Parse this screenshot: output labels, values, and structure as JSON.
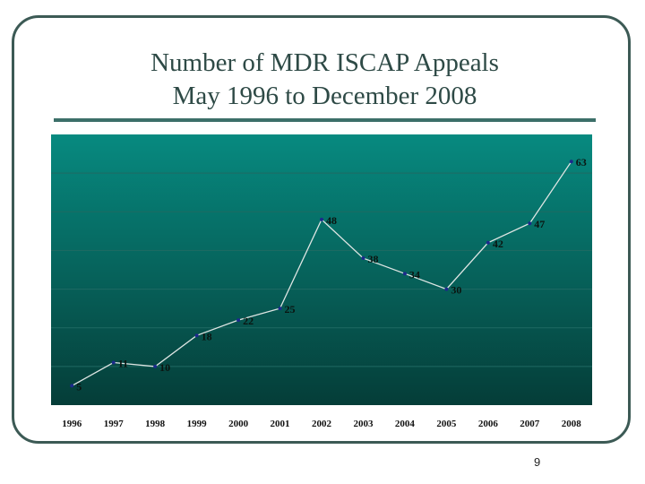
{
  "slide": {
    "title_line1": "Number of MDR ISCAP Appeals",
    "title_line2": "May 1996 to December 2008",
    "page_number": "9"
  },
  "colors": {
    "frame": "#3c5a55",
    "title_rule": "#3c6f69",
    "plot_top": "#078a80",
    "plot_bottom": "#053d38",
    "line": "#dfe6e4",
    "marker": "#1c2a8c",
    "label_text": "#0b1410"
  },
  "chart_data": {
    "type": "line",
    "title": "",
    "xlabel": "",
    "ylabel": "",
    "categories": [
      "1996",
      "1997",
      "1998",
      "1999",
      "2000",
      "2001",
      "2002",
      "2003",
      "2004",
      "2005",
      "2006",
      "2007",
      "2008"
    ],
    "values": [
      5,
      11,
      10,
      18,
      22,
      25,
      48,
      38,
      34,
      30,
      42,
      47,
      63
    ],
    "data_labels": [
      "5",
      "11",
      "10",
      "18",
      "22",
      "25",
      "48",
      "38",
      "34",
      "30",
      "42",
      "47",
      "63"
    ],
    "ylim": [
      0,
      70
    ],
    "grid": true,
    "legend": "none"
  }
}
